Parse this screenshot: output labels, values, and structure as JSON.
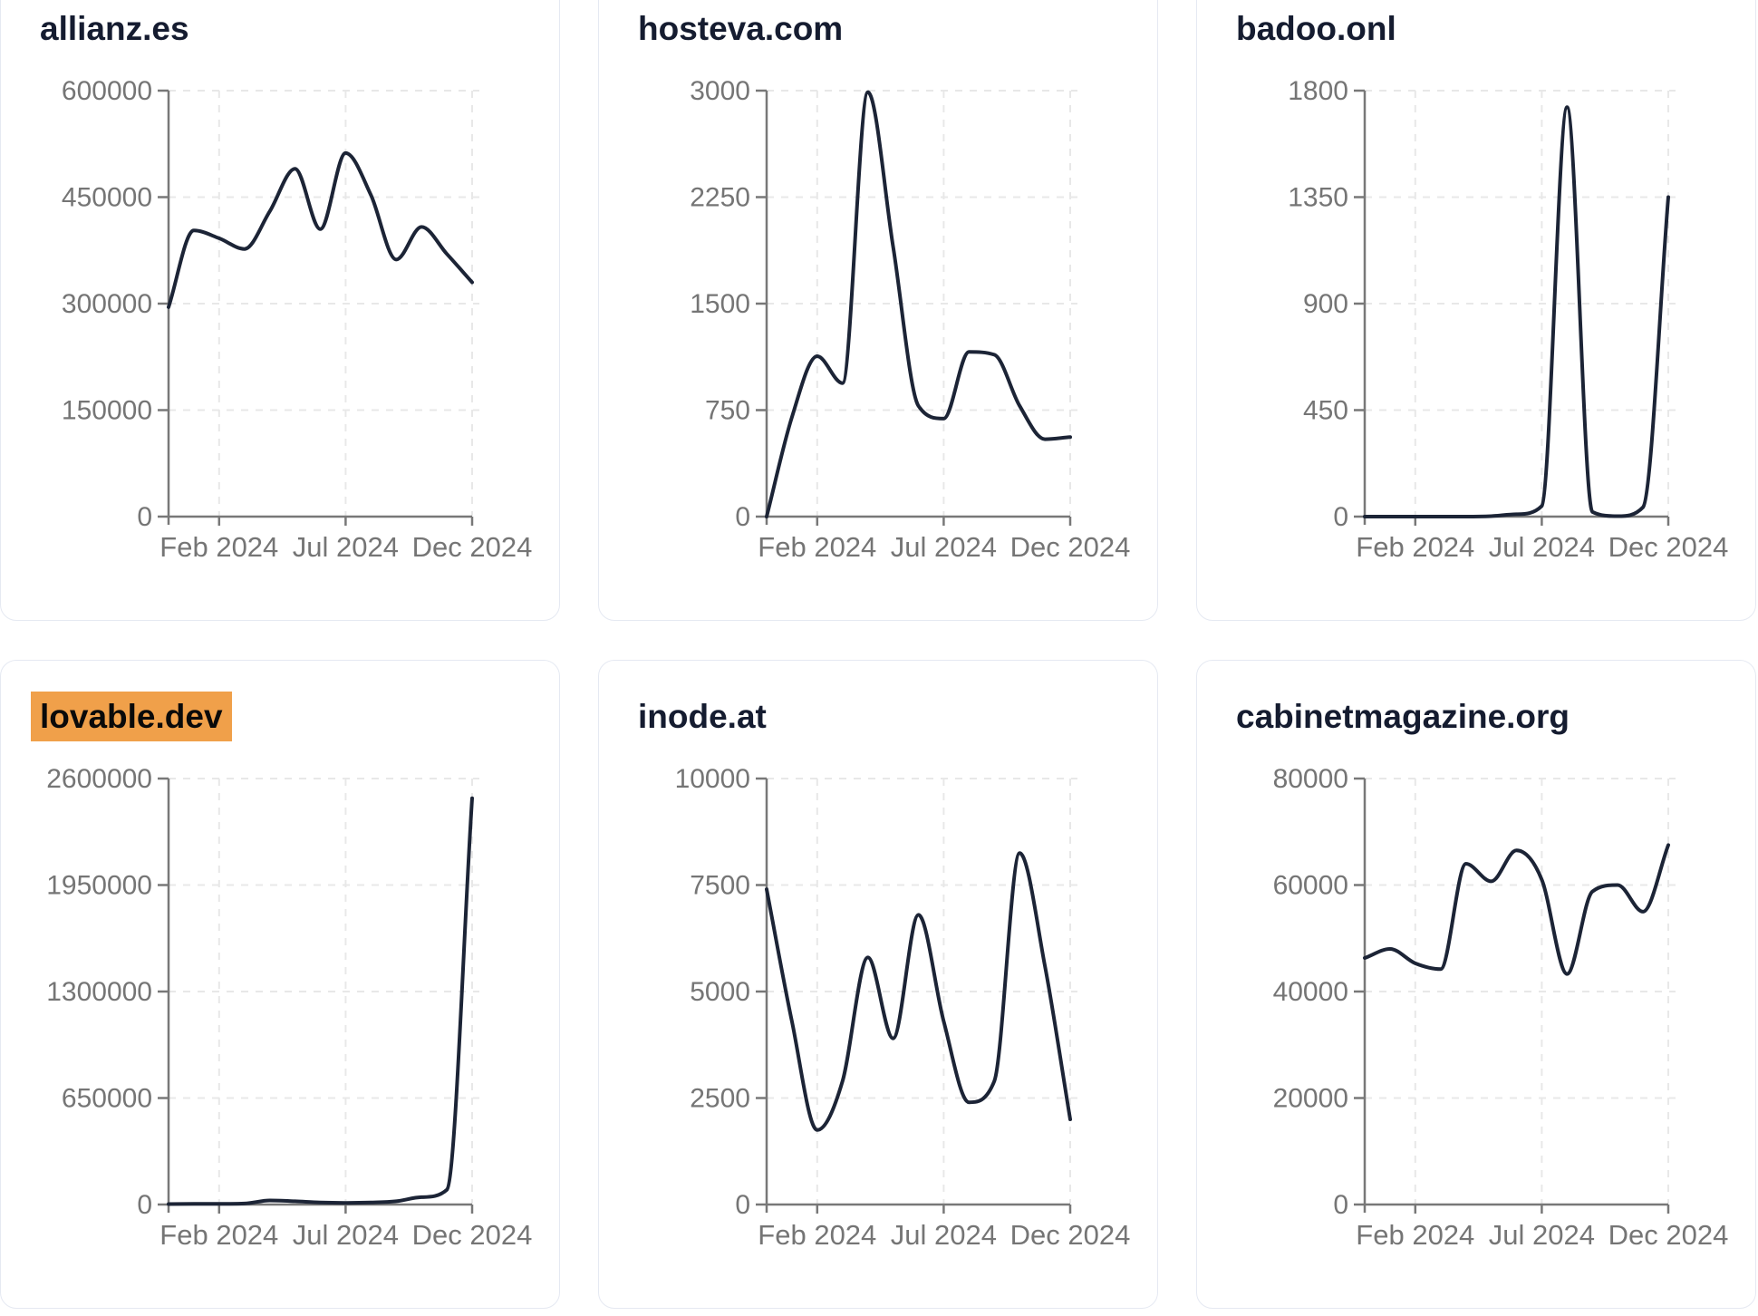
{
  "style": {
    "page_background": "#ffffff",
    "card_background": "#ffffff",
    "card_border_color": "#e5e9f2",
    "title_color": "#151c30",
    "line_color": "#1c2436",
    "axis_color": "#787878",
    "tick_label_color": "#757575",
    "grid_color": "#e8e8e8",
    "highlight_background": "#f0a04a",
    "highlight_text_color": "#0a0a0a"
  },
  "x_axis": {
    "months": [
      "Dec 2023",
      "Jan 2024",
      "Feb 2024",
      "Mar 2024",
      "Apr 2024",
      "May 2024",
      "Jun 2024",
      "Jul 2024",
      "Aug 2024",
      "Sep 2024",
      "Oct 2024",
      "Nov 2024",
      "Dec 2024"
    ],
    "tick_indices": [
      2,
      7,
      12
    ],
    "tick_labels": [
      "Feb 2024",
      "Jul 2024",
      "Dec 2024"
    ]
  },
  "chart_data": [
    {
      "type": "line",
      "title": "allianz.es",
      "highlighted": false,
      "ylim": [
        0,
        600000
      ],
      "y_ticks": [
        0,
        150000,
        300000,
        450000,
        600000
      ],
      "x": [
        "Dec 2023",
        "Jan 2024",
        "Feb 2024",
        "Mar 2024",
        "Apr 2024",
        "May 2024",
        "Jun 2024",
        "Jul 2024",
        "Aug 2024",
        "Sep 2024",
        "Oct 2024",
        "Nov 2024",
        "Dec 2024"
      ],
      "values": [
        295000,
        403000,
        392000,
        377000,
        430000,
        490000,
        405000,
        512000,
        453000,
        362000,
        408000,
        370000,
        330000
      ],
      "xlabel": "",
      "ylabel": "",
      "grid": "dashed",
      "legend": "none"
    },
    {
      "type": "line",
      "title": "hosteva.com",
      "highlighted": false,
      "ylim": [
        0,
        3000
      ],
      "y_ticks": [
        0,
        750,
        1500,
        2250,
        3000
      ],
      "x": [
        "Dec 2023",
        "Jan 2024",
        "Feb 2024",
        "Mar 2024",
        "Apr 2024",
        "May 2024",
        "Jun 2024",
        "Jul 2024",
        "Aug 2024",
        "Sep 2024",
        "Oct 2024",
        "Nov 2024",
        "Dec 2024"
      ],
      "values": [
        0,
        700,
        1130,
        940,
        2990,
        1900,
        780,
        690,
        1160,
        1140,
        780,
        545,
        560
      ],
      "xlabel": "",
      "ylabel": "",
      "grid": "dashed",
      "legend": "none"
    },
    {
      "type": "line",
      "title": "badoo.onl",
      "highlighted": false,
      "ylim": [
        0,
        1800
      ],
      "y_ticks": [
        0,
        450,
        900,
        1350,
        1800
      ],
      "x": [
        "Dec 2023",
        "Jan 2024",
        "Feb 2024",
        "Mar 2024",
        "Apr 2024",
        "May 2024",
        "Jun 2024",
        "Jul 2024",
        "Aug 2024",
        "Sep 2024",
        "Oct 2024",
        "Nov 2024",
        "Dec 2024"
      ],
      "values": [
        0,
        0,
        0,
        0,
        0,
        2,
        10,
        45,
        1730,
        20,
        2,
        40,
        1350
      ],
      "xlabel": "",
      "ylabel": "",
      "grid": "dashed",
      "legend": "none"
    },
    {
      "type": "line",
      "title": "lovable.dev",
      "highlighted": true,
      "ylim": [
        0,
        2600000
      ],
      "y_ticks": [
        0,
        650000,
        1300000,
        1950000,
        2600000
      ],
      "x": [
        "Dec 2023",
        "Jan 2024",
        "Feb 2024",
        "Mar 2024",
        "Apr 2024",
        "May 2024",
        "Jun 2024",
        "Jul 2024",
        "Aug 2024",
        "Sep 2024",
        "Oct 2024",
        "Nov 2024",
        "Dec 2024"
      ],
      "values": [
        3000,
        4000,
        4000,
        6000,
        25000,
        20000,
        12000,
        10000,
        12000,
        20000,
        45000,
        90000,
        2480000
      ],
      "xlabel": "",
      "ylabel": "",
      "grid": "dashed",
      "legend": "none"
    },
    {
      "type": "line",
      "title": "inode.at",
      "highlighted": false,
      "ylim": [
        0,
        10000
      ],
      "y_ticks": [
        0,
        2500,
        5000,
        7500,
        10000
      ],
      "x": [
        "Dec 2023",
        "Jan 2024",
        "Feb 2024",
        "Mar 2024",
        "Apr 2024",
        "May 2024",
        "Jun 2024",
        "Jul 2024",
        "Aug 2024",
        "Sep 2024",
        "Oct 2024",
        "Nov 2024",
        "Dec 2024"
      ],
      "values": [
        7400,
        4300,
        1750,
        2900,
        5800,
        3900,
        6800,
        4300,
        2400,
        2900,
        8250,
        5600,
        2000
      ],
      "xlabel": "",
      "ylabel": "",
      "grid": "dashed",
      "legend": "none"
    },
    {
      "type": "line",
      "title": "cabinetmagazine.org",
      "highlighted": false,
      "ylim": [
        0,
        80000
      ],
      "y_ticks": [
        0,
        20000,
        40000,
        60000,
        80000
      ],
      "x": [
        "Dec 2023",
        "Jan 2024",
        "Feb 2024",
        "Mar 2024",
        "Apr 2024",
        "May 2024",
        "Jun 2024",
        "Jul 2024",
        "Aug 2024",
        "Sep 2024",
        "Oct 2024",
        "Nov 2024",
        "Dec 2024"
      ],
      "values": [
        46300,
        48000,
        45300,
        44200,
        64000,
        60700,
        66500,
        61000,
        43300,
        58800,
        60000,
        55000,
        67500
      ],
      "xlabel": "",
      "ylabel": "",
      "grid": "dashed",
      "legend": "none"
    }
  ]
}
